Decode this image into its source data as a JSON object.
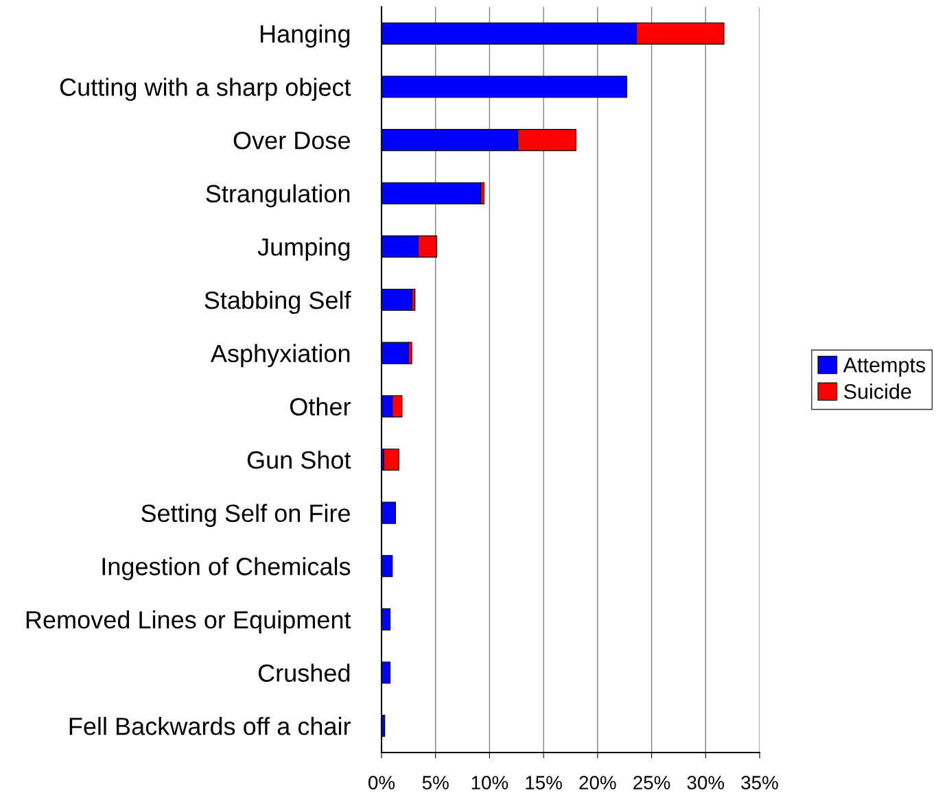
{
  "chart_data": {
    "type": "bar",
    "orientation": "horizontal",
    "stacked": true,
    "categories": [
      "Hanging",
      "Cutting with a sharp object",
      "Over Dose",
      "Strangulation",
      "Jumping",
      "Stabbing Self",
      "Asphyxiation",
      "Other",
      "Gun Shot",
      "Setting Self on Fire",
      "Ingestion of Chemicals",
      "Removed Lines or Equipment",
      "Crushed",
      "Fell Backwards off a chair"
    ],
    "series": [
      {
        "name": "Attempts",
        "color": "#0000ff",
        "values": [
          23.6,
          22.7,
          12.6,
          9.2,
          3.4,
          2.8,
          2.5,
          1.0,
          0.2,
          1.3,
          1.0,
          0.8,
          0.8,
          0.3
        ]
      },
      {
        "name": "Suicide",
        "color": "#ff0000",
        "values": [
          8.1,
          0,
          5.4,
          0.3,
          1.7,
          0.3,
          0.3,
          0.9,
          1.4,
          0,
          0,
          0,
          0,
          0
        ]
      }
    ],
    "xlim": [
      0,
      35
    ],
    "xticks": [
      {
        "value": 0,
        "label": "0%"
      },
      {
        "value": 5,
        "label": "5%"
      },
      {
        "value": 10,
        "label": "10%"
      },
      {
        "value": 15,
        "label": "15%"
      },
      {
        "value": 20,
        "label": "20%"
      },
      {
        "value": 25,
        "label": "25%"
      },
      {
        "value": 30,
        "label": "30%"
      },
      {
        "value": 35,
        "label": "35%"
      }
    ],
    "grid": "x",
    "legend": "right"
  }
}
